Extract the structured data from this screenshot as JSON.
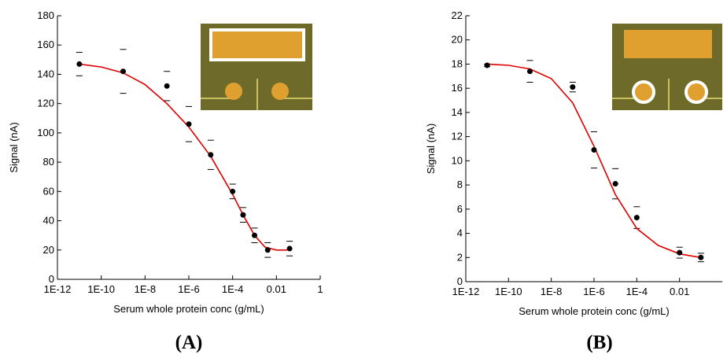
{
  "chart_data": [
    {
      "type": "scatter",
      "x_label": "Serum whole protein conc (g/mL)",
      "y_label": "Signal (nA)",
      "caption": "(A)",
      "xlog": true,
      "xlim": [
        1e-12,
        1
      ],
      "ylim": [
        0,
        180
      ],
      "xticks": [
        {
          "value": 1e-12,
          "label": "1E-12"
        },
        {
          "value": 1e-10,
          "label": "1E-10"
        },
        {
          "value": 1e-08,
          "label": "1E-8"
        },
        {
          "value": 1e-06,
          "label": "1E-6"
        },
        {
          "value": 0.0001,
          "label": "1E-4"
        },
        0.01,
        1
      ],
      "yticks": [
        0,
        20,
        40,
        60,
        80,
        100,
        120,
        140,
        160,
        180
      ],
      "x": [
        1e-11,
        1e-09,
        1e-07,
        1e-06,
        1e-05,
        0.0001,
        0.0003,
        0.001,
        0.004,
        0.04
      ],
      "values": [
        147,
        142,
        132,
        106,
        85,
        60,
        44,
        30,
        20,
        21
      ],
      "errors": [
        8,
        15,
        10,
        12,
        10,
        5,
        5,
        5,
        5,
        5
      ],
      "color": "#000000",
      "fit": {
        "color": "#e00000",
        "x": [
          1e-11,
          1e-10,
          1e-09,
          1e-08,
          1e-07,
          1e-06,
          1e-05,
          0.0001,
          0.0003,
          0.001,
          0.003,
          0.01,
          0.03,
          0.04
        ],
        "values": [
          147,
          145,
          141,
          133,
          120,
          104,
          84,
          58,
          44,
          30,
          22,
          20,
          20,
          21
        ]
      }
    },
    {
      "type": "scatter",
      "x_label": "Serum whole protein conc (g/mL)",
      "y_label": "Signal (nA)",
      "caption": "(B)",
      "xlog": true,
      "xlim": [
        1e-12,
        1
      ],
      "ylim": [
        0,
        22
      ],
      "xticks": [
        {
          "value": 1e-12,
          "label": "1E-12"
        },
        {
          "value": 1e-10,
          "label": "1E-10"
        },
        {
          "value": 1e-08,
          "label": "1E-8"
        },
        {
          "value": 1e-06,
          "label": "1E-6"
        },
        {
          "value": 0.0001,
          "label": "1E-4"
        },
        0.01
      ],
      "yticks": [
        0,
        2,
        4,
        6,
        8,
        10,
        12,
        14,
        16,
        18,
        20,
        22
      ],
      "x": [
        1e-11,
        1e-09,
        1e-07,
        1e-06,
        1e-05,
        0.0001,
        0.01,
        0.1
      ],
      "values": [
        17.9,
        17.4,
        16.1,
        10.9,
        8.1,
        5.3,
        2.4,
        2.0
      ],
      "errors": [
        0.1,
        0.9,
        0.4,
        1.5,
        1.25,
        0.9,
        0.45,
        0.35
      ],
      "color": "#000000",
      "fit": {
        "color": "#e00000",
        "x": [
          1e-11,
          1e-10,
          1e-09,
          1e-08,
          1e-07,
          1e-06,
          1e-05,
          0.0001,
          0.001,
          0.01,
          0.1
        ],
        "values": [
          18.0,
          17.9,
          17.6,
          16.8,
          14.8,
          11.2,
          7.2,
          4.4,
          3.0,
          2.3,
          2.0
        ]
      }
    }
  ]
}
